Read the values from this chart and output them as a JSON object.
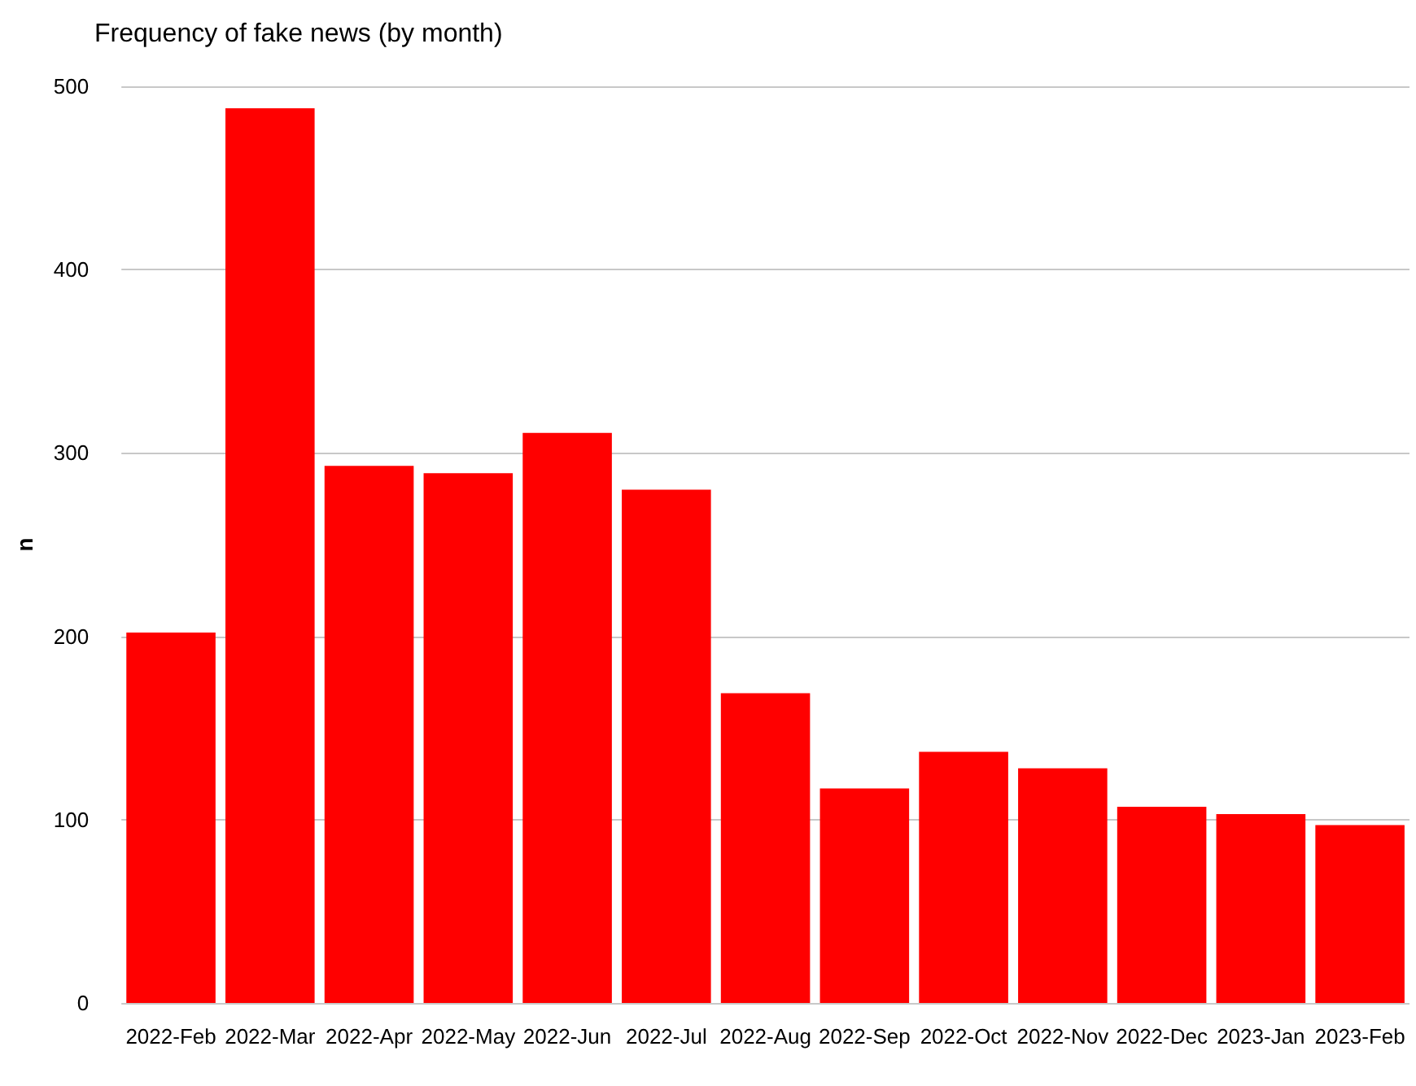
{
  "chart_data": {
    "type": "bar",
    "title": "Frequency of fake news (by month)",
    "ylabel": "n",
    "categories": [
      "2022-Feb",
      "2022-Mar",
      "2022-Apr",
      "2022-May",
      "2022-Jun",
      "2022-Jul",
      "2022-Aug",
      "2022-Sep",
      "2022-Oct",
      "2022-Nov",
      "2022-Dec",
      "2023-Jan",
      "2023-Feb"
    ],
    "values": [
      202,
      488,
      293,
      289,
      311,
      280,
      169,
      117,
      137,
      128,
      107,
      103,
      97
    ],
    "color": "#ff0000",
    "ylim": [
      0,
      500
    ],
    "yticks": [
      0,
      100,
      200,
      300,
      400,
      500
    ],
    "grid": "y"
  }
}
